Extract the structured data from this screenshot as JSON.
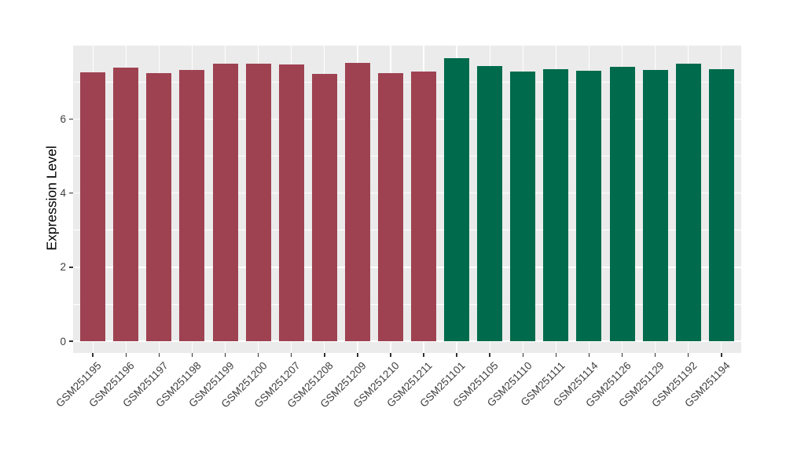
{
  "figure": {
    "background": "#ffffff",
    "panel_background": "#ebebeb",
    "gridline_color": "#ffffff"
  },
  "y_axis": {
    "title": "Expression Level",
    "tick_labels": [
      "0",
      "2",
      "4",
      "6"
    ],
    "tick_values": [
      0,
      2,
      4,
      6
    ],
    "major_gridline_values": [
      0,
      2,
      4,
      6,
      8
    ],
    "minor_gridline_values": [
      1,
      3,
      5,
      7
    ]
  },
  "chart_data": {
    "type": "bar",
    "title": "",
    "xlabel": "",
    "ylabel": "Expression Level",
    "ylim": [
      0,
      8.05
    ],
    "grid": true,
    "legend_position": "none",
    "categories": [
      "GSM251195",
      "GSM251196",
      "GSM251197",
      "GSM251198",
      "GSM251199",
      "GSM251200",
      "GSM251207",
      "GSM251208",
      "GSM251209",
      "GSM251210",
      "GSM251211",
      "GSM251101",
      "GSM251105",
      "GSM251110",
      "GSM251111",
      "GSM251114",
      "GSM251126",
      "GSM251129",
      "GSM251192",
      "GSM251194"
    ],
    "values": [
      7.27,
      7.38,
      7.25,
      7.33,
      7.49,
      7.5,
      7.47,
      7.21,
      7.52,
      7.25,
      7.28,
      7.64,
      7.43,
      7.29,
      7.35,
      7.31,
      7.41,
      7.33,
      7.49,
      7.35
    ],
    "bar_groups": [
      "red",
      "red",
      "red",
      "red",
      "red",
      "red",
      "red",
      "red",
      "red",
      "red",
      "red",
      "green",
      "green",
      "green",
      "green",
      "green",
      "green",
      "green",
      "green",
      "green"
    ],
    "group_colors": {
      "red": "#9e4251",
      "green": "#006b4c"
    }
  }
}
